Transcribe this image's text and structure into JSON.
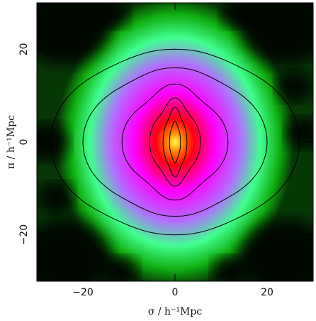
{
  "chart_data": {
    "type": "heatmap",
    "title": "",
    "xlabel": "σ / h⁻¹Mpc",
    "ylabel": "π / h⁻¹Mpc",
    "xlim": [
      -30,
      30
    ],
    "ylim": [
      -30,
      30
    ],
    "xticks": [
      -20,
      0,
      20
    ],
    "yticks": [
      -20,
      0,
      20
    ],
    "xtick_labels": [
      "−20",
      "0",
      "20"
    ],
    "ytick_labels": [
      "−20",
      "0",
      "20"
    ],
    "grid": false,
    "colormap": [
      "#000000",
      "#00c000",
      "#40ff80",
      "#ff00ff",
      "#ff0000",
      "#ffff00"
    ],
    "contours": [
      {
        "level": 1,
        "sigma_extent": 27,
        "pi_extent": 20,
        "pinch": 0.12
      },
      {
        "level": 2,
        "sigma_extent": 20,
        "pi_extent": 16,
        "pinch": 0.16
      },
      {
        "level": 3,
        "sigma_extent": 11.5,
        "pi_extent": 12.5,
        "pinch": 0.35
      },
      {
        "level": 4,
        "sigma_extent": 5.5,
        "pi_extent": 9.5,
        "pinch": 0.45
      },
      {
        "level": 5,
        "sigma_extent": 2.6,
        "pi_extent": 7.5,
        "pinch": 0.4
      },
      {
        "level": 6,
        "sigma_extent": 1.2,
        "pi_extent": 4.5,
        "pinch": 0.3
      }
    ]
  }
}
